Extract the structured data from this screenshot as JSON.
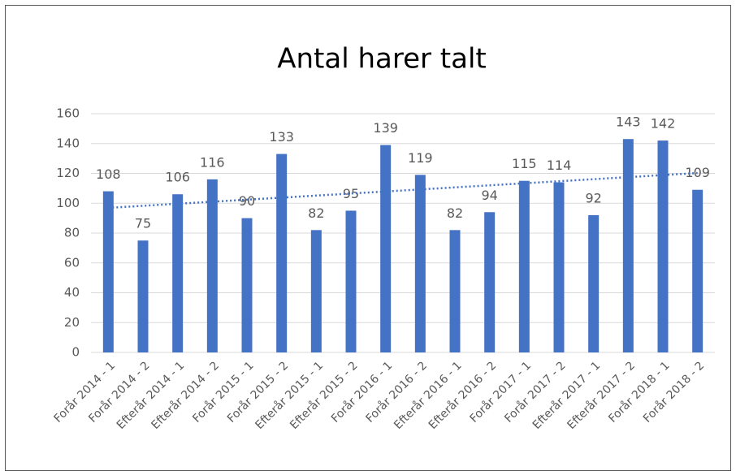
{
  "chart_data": {
    "type": "bar",
    "title": "Antal harer talt",
    "categories": [
      "Forår 2014 - 1",
      "Forår 2014 - 2",
      "Efterår 2014 - 1",
      "Efterår 2014 - 2",
      "Forår 2015 - 1",
      "Forår 2015 - 2",
      "Efterår 2015 - 1",
      "Efterår 2015 - 2",
      "Forår 2016 - 1",
      "Forår 2016 - 2",
      "Efterår 2016 - 1",
      "Efterår 2016 - 2",
      "Forår 2017 - 1",
      "Forår 2017 - 2",
      "Efterår 2017 - 1",
      "Efterår 2017 - 2",
      "Forår 2018 - 1",
      "Forår 2018 - 2"
    ],
    "values": [
      108,
      75,
      106,
      116,
      90,
      133,
      82,
      95,
      139,
      119,
      82,
      94,
      115,
      114,
      92,
      143,
      142,
      109
    ],
    "color": "#4472c4",
    "trendline": "linear",
    "trendline_color": "#4472c4",
    "ylim": [
      0,
      160
    ],
    "yticks": [
      0,
      20,
      40,
      60,
      80,
      100,
      120,
      140,
      160
    ],
    "grid": true
  }
}
